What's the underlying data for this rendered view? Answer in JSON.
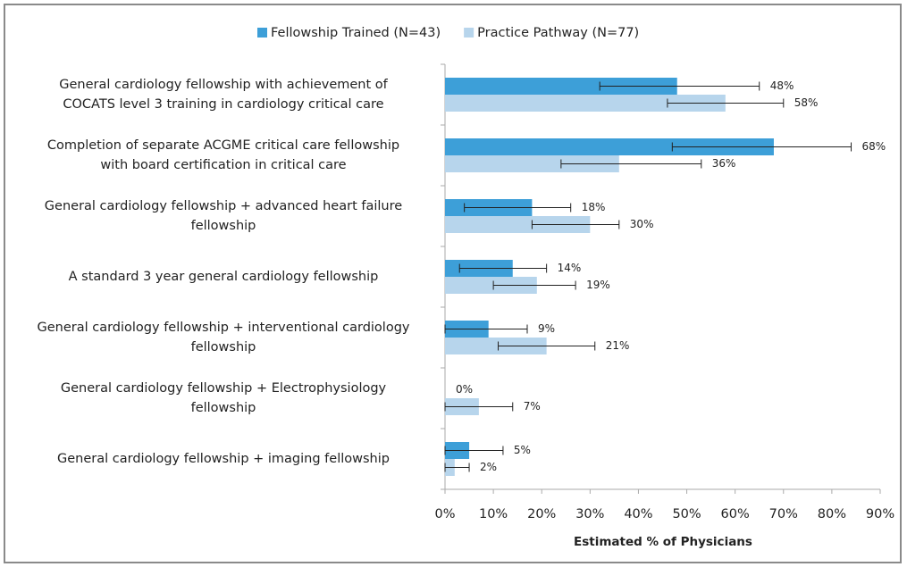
{
  "chart_data": {
    "type": "bar",
    "orientation": "horizontal",
    "categories": [
      [
        "General cardiology fellowship with achievement of",
        "COCATS level 3 training in cardiology critical care"
      ],
      [
        "Completion of separate ACGME critical care fellowship",
        "with board certification in critical care"
      ],
      [
        "General cardiology fellowship + advanced heart failure",
        "fellowship"
      ],
      [
        "A standard 3 year general cardiology fellowship"
      ],
      [
        "General cardiology fellowship + interventional cardiology",
        "fellowship"
      ],
      [
        "General cardiology fellowship + Electrophysiology",
        "fellowship"
      ],
      [
        "General cardiology fellowship + imaging fellowship"
      ]
    ],
    "series": [
      {
        "name": "Fellowship Trained (N=43)",
        "color": "#3d9fd8",
        "values": [
          48,
          68,
          18,
          14,
          9,
          0,
          5
        ],
        "value_labels": [
          "48%",
          "68%",
          "18%",
          "14%",
          "9%",
          "0%",
          "5%"
        ],
        "ci_low": [
          32,
          47,
          4,
          3,
          0,
          0,
          0
        ],
        "ci_high": [
          65,
          84,
          26,
          21,
          17,
          0,
          12
        ]
      },
      {
        "name": "Practice Pathway (N=77)",
        "color": "#b7d5ec",
        "values": [
          58,
          36,
          30,
          19,
          21,
          7,
          2
        ],
        "value_labels": [
          "58%",
          "36%",
          "30%",
          "19%",
          "21%",
          "7%",
          "2%"
        ],
        "ci_low": [
          46,
          24,
          18,
          10,
          11,
          0,
          0
        ],
        "ci_high": [
          70,
          53,
          36,
          27,
          31,
          14,
          5
        ]
      }
    ],
    "xlabel": "Estimated % of Physicians",
    "xlim": [
      0,
      90
    ],
    "xticks": [
      {
        "value": 0,
        "label": "0%"
      },
      {
        "value": 10,
        "label": "10%"
      },
      {
        "value": 20,
        "label": "20%"
      },
      {
        "value": 30,
        "label": "30%"
      },
      {
        "value": 40,
        "label": "40%"
      },
      {
        "value": 50,
        "label": "50%"
      },
      {
        "value": 60,
        "label": "60%"
      },
      {
        "value": 70,
        "label": "70%"
      },
      {
        "value": 80,
        "label": "80%"
      },
      {
        "value": 90,
        "label": "90%"
      }
    ],
    "legend": "top"
  }
}
